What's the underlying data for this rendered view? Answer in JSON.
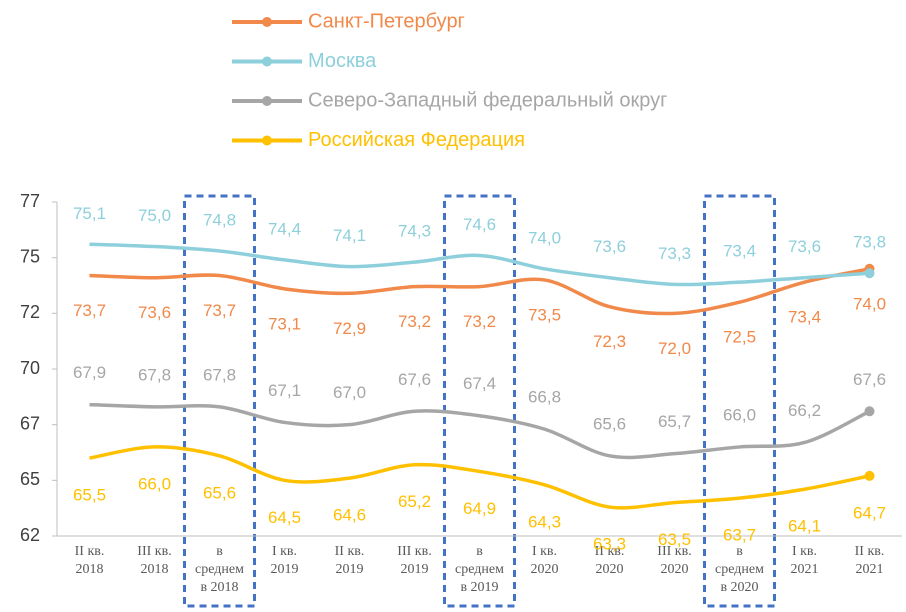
{
  "chart_data": {
    "type": "line",
    "categories": [
      "II кв.\n2018",
      "III кв.\n2018",
      "в\nсреднем\nв 2018",
      "I кв.\n2019",
      "II кв.\n2019",
      "III кв.\n2019",
      "в\nсреднем\nв 2019",
      "I кв.\n2020",
      "II кв.\n2020",
      "III кв.\n2020",
      "в\nсреднем\nв 2020",
      "I кв.\n2021",
      "II кв.\n2021"
    ],
    "series": [
      {
        "name": "Санкт-Петербург",
        "color": "#f0894a",
        "values": [
          73.7,
          73.6,
          73.7,
          73.1,
          72.9,
          73.2,
          73.2,
          73.5,
          72.3,
          72.0,
          72.5,
          73.4,
          74.0
        ],
        "value_labels": [
          "73,7",
          "73,6",
          "73,7",
          "73,1",
          "72,9",
          "73,2",
          "73,2",
          "73,5",
          "72,3",
          "72,0",
          "72,5",
          "73,4",
          "74,0"
        ]
      },
      {
        "name": "Москва",
        "color": "#8ecfdc",
        "values": [
          75.1,
          75.0,
          74.8,
          74.4,
          74.1,
          74.3,
          74.6,
          74.0,
          73.6,
          73.3,
          73.4,
          73.6,
          73.8
        ],
        "value_labels": [
          "75,1",
          "75,0",
          "74,8",
          "74,4",
          "74,1",
          "74,3",
          "74,6",
          "74,0",
          "73,6",
          "73,3",
          "73,4",
          "73,6",
          "73,8"
        ]
      },
      {
        "name": "Северо-Западный федеральный округ",
        "color": "#a6a6a6",
        "values": [
          67.9,
          67.8,
          67.8,
          67.1,
          67.0,
          67.6,
          67.4,
          66.8,
          65.6,
          65.7,
          66.0,
          66.2,
          67.6
        ],
        "value_labels": [
          "67,9",
          "67,8",
          "67,8",
          "67,1",
          "67,0",
          "67,6",
          "67,4",
          "66,8",
          "65,6",
          "65,7",
          "66,0",
          "66,2",
          "67,6"
        ]
      },
      {
        "name": "Российская Федерация",
        "color": "#ffc000",
        "values": [
          65.5,
          66.0,
          65.6,
          64.5,
          64.6,
          65.2,
          64.9,
          64.3,
          63.3,
          63.5,
          63.7,
          64.1,
          64.7
        ],
        "value_labels": [
          "65,5",
          "66,0",
          "65,6",
          "64,5",
          "64,6",
          "65,2",
          "64,9",
          "64,3",
          "63,3",
          "63,5",
          "63,7",
          "64,1",
          "64,7"
        ]
      }
    ],
    "ylim": [
      62,
      77
    ],
    "yticks": [
      62,
      {
        "value": 64.5,
        "label": "65"
      },
      67,
      {
        "value": 69.5,
        "label": "70"
      },
      72,
      {
        "value": 74.5,
        "label": "75"
      },
      77
    ]
  }
}
